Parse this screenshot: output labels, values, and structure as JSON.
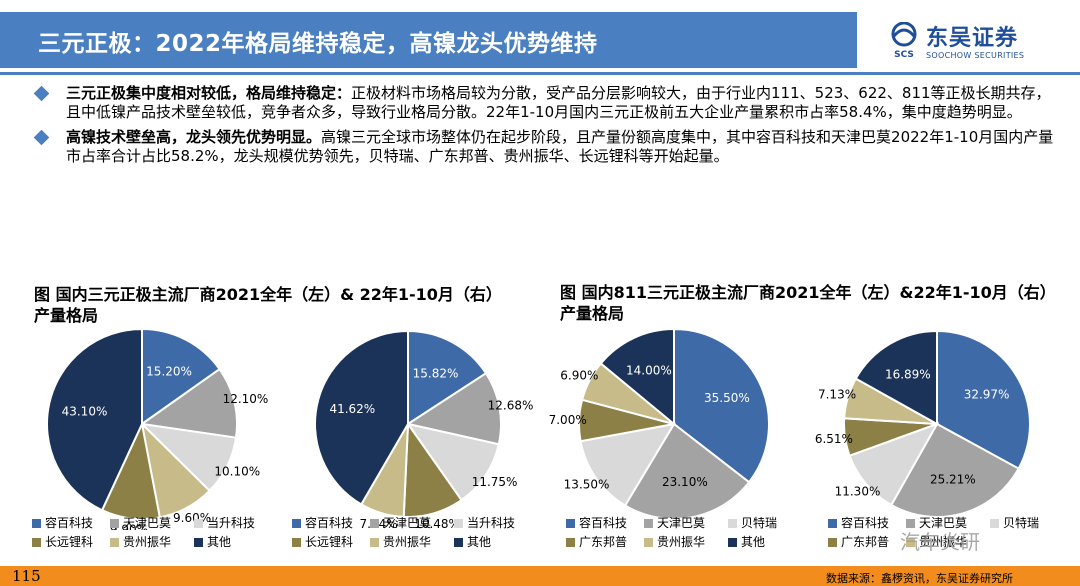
{
  "header": {
    "title": "三元正极：2022年格局维持稳定，高镍龙头优势维持",
    "logo_cn": "东吴证券",
    "logo_en": "SOOCHOW SECURITIES",
    "logo_mark": "SCS"
  },
  "bullets": [
    {
      "bold": "三元正极集中度相对较低，格局维持稳定：",
      "text": "正极材料市场格局较为分散，受产品分层影响较大，由于行业内111、523、622、811等正极长期共存，且中低镍产品技术壁垒较低，竞争者众多，导致行业格局分散。22年1-10月国内三元正极前五大企业产量累积市占率58.4%，集中度趋势明显。"
    },
    {
      "bold": "高镍技术壁垒高，龙头领先优势明显。",
      "text": "高镍三元全球市场整体仍在起步阶段，且产量份额高度集中，其中容百科技和天津巴莫2022年1-10月国内产量市占率合计占比58.2%，龙头规模优势领先，贝特瑞、广东邦普、贵州振华、长远锂科等开始起量。"
    }
  ],
  "chart_titles": [
    "图 国内三元正极主流厂商2021全年（左）& 22年1-10月（右）产量格局",
    "图 国内811三元正极主流厂商2021全年（左）&22年1-10月（右）产量格局"
  ],
  "colors": {
    "title_bar": "#4a7fc1",
    "footer": "#f28c1c"
  },
  "chart_data": [
    {
      "type": "pie",
      "title": "",
      "slices": [
        {
          "label": "容百科技",
          "value": 15.2,
          "text": "15.20%",
          "color": "#3f6aa8"
        },
        {
          "label": "天津巴莫",
          "value": 12.1,
          "text": "12.10%",
          "color": "#a3a3a3"
        },
        {
          "label": "当升科技",
          "value": 10.1,
          "text": "10.10%",
          "color": "#d9d9d9"
        },
        {
          "label": "贵州振华",
          "value": 9.6,
          "text": "9.60%",
          "color": "#c7bb8a"
        },
        {
          "label": "长远锂科",
          "value": 9.9,
          "text": "9.90%",
          "color": "#8c8047"
        },
        {
          "label": "其他",
          "value": 43.1,
          "text": "43.10%",
          "color": "#1c3359"
        }
      ]
    },
    {
      "type": "pie",
      "title": "",
      "slices": [
        {
          "label": "容百科技",
          "value": 15.82,
          "text": "15.82%",
          "color": "#3f6aa8"
        },
        {
          "label": "天津巴莫",
          "value": 12.68,
          "text": "12.68%",
          "color": "#a3a3a3"
        },
        {
          "label": "当升科技",
          "value": 11.75,
          "text": "11.75%",
          "color": "#d9d9d9"
        },
        {
          "label": "长远锂科",
          "value": 10.48,
          "text": "10.48%",
          "color": "#8c8047"
        },
        {
          "label": "贵州振华",
          "value": 7.64,
          "text": "7.64%",
          "color": "#c7bb8a"
        },
        {
          "label": "其他",
          "value": 41.62,
          "text": "41.62%",
          "color": "#1c3359"
        }
      ]
    },
    {
      "type": "pie",
      "title": "",
      "slices": [
        {
          "label": "容百科技",
          "value": 35.5,
          "text": "35.50%",
          "color": "#3f6aa8"
        },
        {
          "label": "天津巴莫",
          "value": 23.1,
          "text": "23.10%",
          "color": "#a3a3a3"
        },
        {
          "label": "贝特瑞",
          "value": 13.5,
          "text": "13.50%",
          "color": "#d9d9d9"
        },
        {
          "label": "广东邦普",
          "value": 7.0,
          "text": "7.00%",
          "color": "#8c8047"
        },
        {
          "label": "贵州振华",
          "value": 6.9,
          "text": "6.90%",
          "color": "#c7bb8a"
        },
        {
          "label": "其他",
          "value": 14.0,
          "text": "14.00%",
          "color": "#1c3359"
        }
      ]
    },
    {
      "type": "pie",
      "title": "",
      "slices": [
        {
          "label": "容百科技",
          "value": 32.97,
          "text": "32.97%",
          "color": "#3f6aa8"
        },
        {
          "label": "天津巴莫",
          "value": 25.21,
          "text": "25.21%",
          "color": "#a3a3a3"
        },
        {
          "label": "贝特瑞",
          "value": 11.3,
          "text": "11.30%",
          "color": "#d9d9d9"
        },
        {
          "label": "广东邦普",
          "value": 6.51,
          "text": "6.51%",
          "color": "#8c8047"
        },
        {
          "label": "贵州振华",
          "value": 7.13,
          "text": "7.13%",
          "color": "#c7bb8a"
        },
        {
          "label": "其他",
          "value": 16.89,
          "text": "16.89%",
          "color": "#1c3359"
        }
      ]
    }
  ],
  "legends": [
    [
      {
        "label": "容百科技",
        "color": "#3f6aa8"
      },
      {
        "label": "天津巴莫",
        "color": "#a3a3a3"
      },
      {
        "label": "当升科技",
        "color": "#d9d9d9"
      },
      {
        "label": "长远锂科",
        "color": "#8c8047"
      },
      {
        "label": "贵州振华",
        "color": "#c7bb8a"
      },
      {
        "label": "其他",
        "color": "#1c3359"
      }
    ],
    [
      {
        "label": "容百科技",
        "color": "#3f6aa8"
      },
      {
        "label": "天津巴莫",
        "color": "#a3a3a3"
      },
      {
        "label": "当升科技",
        "color": "#d9d9d9"
      },
      {
        "label": "长远锂科",
        "color": "#8c8047"
      },
      {
        "label": "贵州振华",
        "color": "#c7bb8a"
      },
      {
        "label": "其他",
        "color": "#1c3359"
      }
    ],
    [
      {
        "label": "容百科技",
        "color": "#3f6aa8"
      },
      {
        "label": "天津巴莫",
        "color": "#a3a3a3"
      },
      {
        "label": "贝特瑞",
        "color": "#d9d9d9"
      },
      {
        "label": "广东邦普",
        "color": "#8c8047"
      },
      {
        "label": "贵州振华",
        "color": "#c7bb8a"
      },
      {
        "label": "其他",
        "color": "#1c3359"
      }
    ],
    [
      {
        "label": "容百科技",
        "color": "#3f6aa8"
      },
      {
        "label": "天津巴莫",
        "color": "#a3a3a3"
      },
      {
        "label": "贝特瑞",
        "color": "#d9d9d9"
      },
      {
        "label": "广东邦普",
        "color": "#8c8047"
      },
      {
        "label": "贵州振华",
        "color": "#c7bb8a"
      }
    ]
  ],
  "footer": {
    "page_number": "115",
    "source": "数据来源：鑫椤资讯，东吴证券研究所",
    "watermark": "汽车炎研"
  }
}
